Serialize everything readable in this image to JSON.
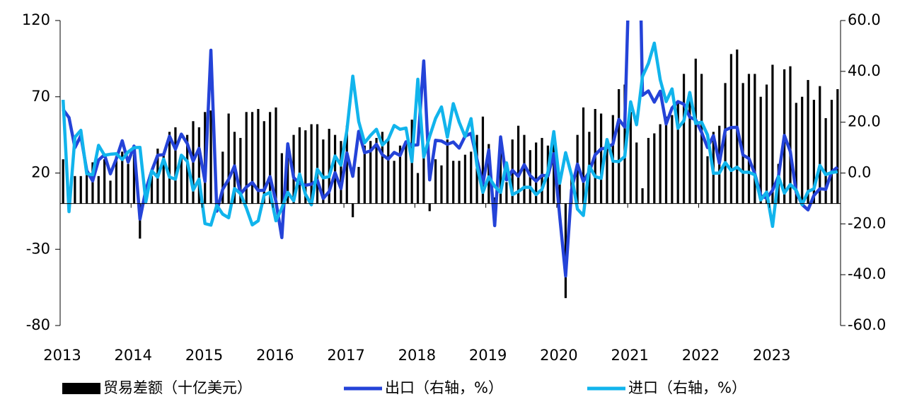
{
  "chart_data": {
    "type": "bar_line",
    "categories": [
      "2013",
      null,
      null,
      null,
      null,
      null,
      null,
      null,
      null,
      null,
      null,
      null,
      "2014",
      null,
      null,
      null,
      null,
      null,
      null,
      null,
      null,
      null,
      null,
      null,
      "2015",
      null,
      null,
      null,
      null,
      null,
      null,
      null,
      null,
      null,
      null,
      null,
      "2016",
      null,
      null,
      null,
      null,
      null,
      null,
      null,
      null,
      null,
      null,
      null,
      "2017",
      null,
      null,
      null,
      null,
      null,
      null,
      null,
      null,
      null,
      null,
      null,
      "2018",
      null,
      null,
      null,
      null,
      null,
      null,
      null,
      null,
      null,
      null,
      null,
      "2019",
      null,
      null,
      null,
      null,
      null,
      null,
      null,
      null,
      null,
      null,
      null,
      "2020",
      null,
      null,
      null,
      null,
      null,
      null,
      null,
      null,
      null,
      null,
      null,
      "2021",
      null,
      null,
      null,
      null,
      null,
      null,
      null,
      null,
      null,
      null,
      null,
      "2022",
      null,
      null,
      null,
      null,
      null,
      null,
      null,
      null,
      null,
      null,
      null,
      "2023",
      null,
      null,
      null,
      null,
      null,
      null,
      null,
      null,
      null,
      null,
      null
    ],
    "series": [
      {
        "name": "贸易差额（十亿美元）",
        "type": "bar",
        "color": "#000000",
        "values": [
          29,
          -1,
          18,
          18,
          20,
          27,
          18,
          29,
          15,
          31,
          34,
          26,
          32,
          -23,
          8,
          18,
          36,
          32,
          47,
          50,
          31,
          45,
          54,
          50,
          60,
          61,
          3,
          34,
          59,
          47,
          43,
          60,
          60,
          62,
          54,
          60,
          63,
          33,
          30,
          45,
          50,
          48,
          52,
          52,
          42,
          49,
          45,
          41,
          51,
          -9,
          24,
          38,
          41,
          43,
          47,
          42,
          28,
          38,
          40,
          55,
          20,
          34,
          -5,
          29,
          25,
          42,
          28,
          28,
          32,
          34,
          45,
          57,
          39,
          4,
          33,
          14,
          42,
          51,
          45,
          35,
          40,
          43,
          38,
          47,
          13,
          -62,
          20,
          45,
          63,
          47,
          62,
          59,
          37,
          58,
          75,
          78,
          60,
          40,
          10,
          43,
          46,
          52,
          57,
          58,
          67,
          85,
          72,
          95,
          85,
          31,
          47,
          51,
          79,
          98,
          101,
          79,
          85,
          85,
          70,
          78,
          91,
          26,
          88,
          90,
          66,
          70,
          81,
          68,
          77,
          56,
          68,
          75
        ]
      },
      {
        "name": "出口（右轴，%）",
        "type": "line",
        "axis": "y2",
        "color": "#2443d8",
        "values": [
          25,
          21.8,
          10,
          14.7,
          1,
          -3.1,
          5.1,
          7.2,
          -0.3,
          5.6,
          12.7,
          4.3,
          10.6,
          -18.1,
          -6.6,
          0.9,
          7,
          7.2,
          14.5,
          9.4,
          15.3,
          11.6,
          4.7,
          9.7,
          -3.3,
          48.3,
          -15,
          -6.4,
          -2.5,
          2.8,
          -8.3,
          -5.5,
          -3.7,
          -6.9,
          -6.8,
          -1.4,
          -11.2,
          -25.4,
          11.5,
          -1.8,
          -4.1,
          -4.8,
          -4.4,
          -2.8,
          -10,
          -7.3,
          0.1,
          -6.1,
          7.9,
          -1.3,
          16.4,
          8,
          8.7,
          11.3,
          7.2,
          5.5,
          8.1,
          6.9,
          12.3,
          10.9,
          11.1,
          44.1,
          -2.7,
          12.9,
          12.6,
          11.3,
          12.2,
          9.8,
          14.5,
          15.6,
          5.4,
          -4.4,
          9.1,
          -20.7,
          14.2,
          -2.7,
          1.1,
          -1.3,
          3.3,
          -1,
          -3.2,
          -0.9,
          -1.1,
          7.6,
          -17,
          -40.5,
          -6.6,
          3.5,
          -3.3,
          0.5,
          7.2,
          9.5,
          9.9,
          11.4,
          21.1,
          18.1,
          100,
          154.9,
          30.6,
          32.3,
          27.9,
          32.2,
          19.3,
          25.6,
          28.1,
          27.1,
          22,
          20.9,
          16,
          10,
          14.7,
          3.9,
          16.9,
          17.9,
          18,
          7.1,
          5.7,
          -0.3,
          -8.9,
          -9.9,
          -6.8,
          -1.3,
          14.8,
          8.5,
          -7.5,
          -12.4,
          -14.5,
          -8.8,
          -6.2,
          -6.4,
          0.5,
          2.3
        ]
      },
      {
        "name": "进口（右轴，%）",
        "type": "line",
        "axis": "y2",
        "color": "#11b4ec",
        "values": [
          28.8,
          -15.2,
          14.1,
          16.8,
          -0.3,
          -0.7,
          10.9,
          7,
          7.4,
          7.6,
          5.3,
          8.3,
          10,
          10.1,
          -11.3,
          0.8,
          -1.6,
          5.5,
          -1.6,
          -2.4,
          7,
          4.6,
          -6.7,
          -2.4,
          -19.9,
          -20.5,
          -12.7,
          -16.2,
          -17.6,
          -6.1,
          -8.1,
          -13.8,
          -20.4,
          -18.8,
          -8.7,
          -7.6,
          -18.8,
          -13.8,
          -7.6,
          -10.9,
          -0.4,
          -8.4,
          -12.5,
          1.5,
          -1.9,
          -1.4,
          6.7,
          3.1,
          16.7,
          38.1,
          20.3,
          11.9,
          14.8,
          17.2,
          11,
          13.3,
          18.7,
          17.2,
          17.7,
          4.5,
          36.9,
          6.3,
          14.4,
          21.5,
          26,
          14.1,
          27.3,
          20,
          14.3,
          21.4,
          3,
          -7.6,
          -1.5,
          -5.2,
          -7.6,
          4,
          -8.5,
          -7.3,
          -5.6,
          -5.6,
          -8.5,
          -6.4,
          0.3,
          16.3,
          -4,
          8,
          -0.9,
          -14.2,
          -16.7,
          2.7,
          -1.4,
          -2.1,
          13.2,
          4.7,
          4.5,
          6.5,
          28,
          19,
          38,
          43.1,
          51.1,
          36.7,
          28.1,
          33.1,
          17.6,
          20.6,
          31.7,
          19.5,
          20,
          15,
          -0.1,
          0,
          4.1,
          1,
          2.3,
          0.3,
          0.3,
          -0.7,
          -10.6,
          -7.5,
          -21,
          -1.4,
          -7.9,
          -4.5,
          -6.8,
          -12.4,
          -7.3,
          -6.2,
          3,
          -0.6,
          0.2,
          0.5
        ]
      }
    ],
    "ylim": [
      -80,
      120
    ],
    "yticks": [
      -80,
      -30,
      20,
      70,
      120
    ],
    "y2lim": [
      -60,
      60
    ],
    "y2ticks": [
      {
        "value": -60,
        "label": "-60.0"
      },
      {
        "value": -40,
        "label": "-40.0"
      },
      {
        "value": -20,
        "label": "-20.0"
      },
      {
        "value": 0,
        "label": "0.0"
      },
      {
        "value": 20,
        "label": "20.0"
      },
      {
        "value": 40,
        "label": "40.0"
      },
      {
        "value": 60,
        "label": "60.0"
      }
    ],
    "legend": "bottom"
  }
}
